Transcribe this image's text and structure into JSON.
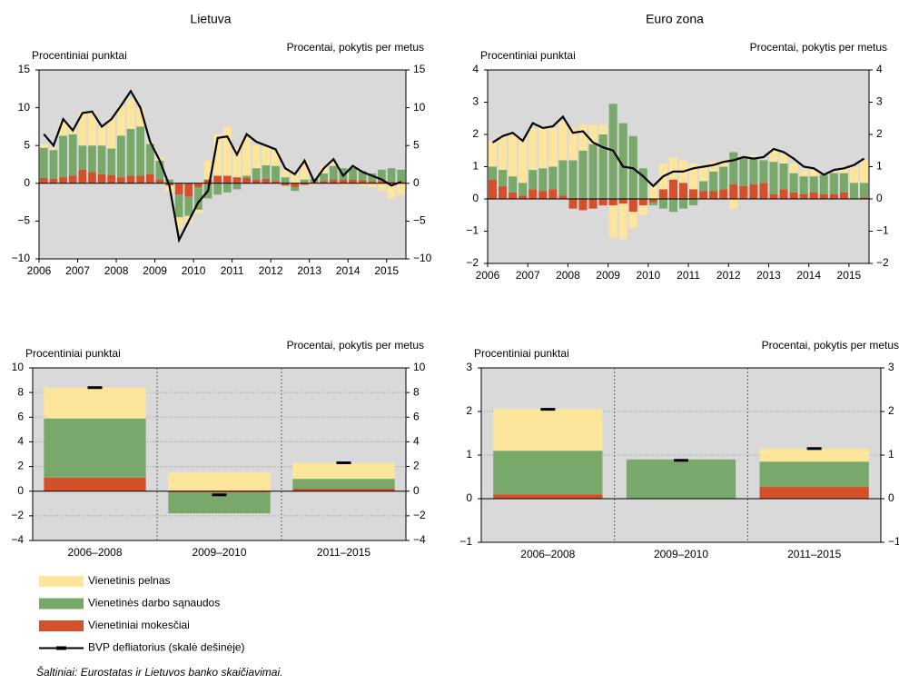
{
  "legend": [
    {
      "name": "Vienetinis pelnas",
      "color": "#fde69c"
    },
    {
      "name": "Vienetinės darbo sąnaudos",
      "color": "#78a86a"
    },
    {
      "name": "Vienetiniai mokesčiai",
      "color": "#d4502a"
    },
    {
      "name": "BVP defliatorius (skalė dešinėje)",
      "color": "#000000"
    }
  ],
  "source": "Šaltiniai: Eurostatas ir Lietuvos banko skaičiavimai.",
  "chart_data": [
    {
      "type": "bar",
      "title": "Lietuva",
      "ylabel": "Procentiniai punktai",
      "y2label": "Procentai, pokytis per metus",
      "categories": [
        "2006",
        null,
        null,
        null,
        "2007",
        null,
        null,
        null,
        "2008",
        null,
        null,
        null,
        "2009",
        null,
        null,
        null,
        "2010",
        null,
        null,
        null,
        "2011",
        null,
        null,
        null,
        "2012",
        null,
        null,
        null,
        "2013",
        null,
        null,
        null,
        "2014",
        null,
        null,
        null,
        "2015",
        null
      ],
      "ylim": [
        -10,
        15
      ],
      "yticks": [
        {
          "value": -10,
          "label": "−10"
        },
        {
          "value": -5,
          "label": "−5"
        },
        0,
        5,
        10,
        15
      ],
      "y2lim": [
        -10,
        15
      ],
      "y2ticks": [
        {
          "value": -10,
          "label": "−10"
        },
        {
          "value": -5,
          "label": "−5"
        },
        0,
        5,
        10,
        15
      ],
      "series": [
        {
          "values": [
            0.5,
            0.3,
            2,
            1,
            4.5,
            4.5,
            2.5,
            4,
            4,
            4,
            2.5,
            0.3,
            0.5,
            -0.8,
            -1.5,
            -1,
            -0.5,
            2.5,
            5.5,
            6.5,
            4,
            5,
            3,
            2.5,
            2,
            1,
            1.5,
            2.5,
            -0.2,
            1,
            0.5,
            -0.2,
            0,
            -0.3,
            -0.5,
            -1,
            -2,
            -1.5
          ]
        },
        {
          "values": [
            4,
            3.8,
            5.5,
            5.5,
            3.2,
            3.5,
            3.8,
            3.5,
            5.5,
            6.2,
            6.5,
            4,
            2.5,
            0.5,
            -3,
            -2.5,
            -3,
            -2,
            -1.5,
            -1.2,
            -0.8,
            0.3,
            1.5,
            1.8,
            2,
            0.8,
            -0.5,
            0.5,
            0.4,
            1,
            1.8,
            1.5,
            1.5,
            1.2,
            1,
            1.5,
            1.8,
            1.6
          ]
        },
        {
          "values": [
            0.7,
            0.6,
            0.8,
            1,
            1.8,
            1.5,
            1.2,
            1.1,
            0.8,
            1,
            1,
            1.2,
            0.5,
            -0.3,
            -1.5,
            -1.8,
            -0.5,
            0.5,
            1,
            1,
            0.8,
            0.7,
            0.5,
            0.6,
            0.3,
            -0.3,
            -0.5,
            -0.2,
            0.2,
            0.3,
            0.5,
            0.5,
            0.5,
            0.4,
            0.3,
            0.3,
            0.2,
            0.2
          ]
        },
        {
          "axis": "y2",
          "type": "line",
          "values": [
            6.5,
            5,
            8.5,
            7,
            9.3,
            9.5,
            7.5,
            8.5,
            10.3,
            12.2,
            10,
            5.5,
            3,
            -0.3,
            -7.5,
            -5,
            -2.5,
            -1,
            6,
            6.2,
            3.8,
            6.5,
            5.5,
            5,
            4.5,
            2,
            1.2,
            3,
            0.2,
            2,
            3.2,
            1,
            2.3,
            1.5,
            1,
            0.5,
            -0.3,
            0.2
          ]
        }
      ]
    },
    {
      "type": "bar",
      "title": "Euro zona",
      "ylabel": "Procentiniai punktai",
      "y2label": "Procentai, pokytis per metus",
      "categories": [
        "2006",
        null,
        null,
        null,
        "2007",
        null,
        null,
        null,
        "2008",
        null,
        null,
        null,
        "2009",
        null,
        null,
        null,
        "2010",
        null,
        null,
        null,
        "2011",
        null,
        null,
        null,
        "2012",
        null,
        null,
        null,
        "2013",
        null,
        null,
        null,
        "2014",
        null,
        null,
        null,
        "2015",
        null
      ],
      "ylim": [
        -2,
        4
      ],
      "yticks": [
        {
          "value": -2,
          "label": "−2"
        },
        {
          "value": -1,
          "label": "−1"
        },
        0,
        1,
        2,
        3,
        4
      ],
      "y2lim": [
        -2,
        4
      ],
      "y2ticks": [
        {
          "value": -2,
          "label": "−2"
        },
        {
          "value": -1,
          "label": "−1"
        },
        0,
        1,
        2,
        3,
        4
      ],
      "series": [
        {
          "values": [
            0.8,
            1.1,
            1.3,
            1.4,
            1.3,
            1.3,
            1.2,
            1.2,
            1,
            0.8,
            0.6,
            0.3,
            -1,
            -1.1,
            -0.5,
            -0.3,
            0.4,
            0.8,
            0.7,
            0.7,
            0.8,
            0.5,
            0.3,
            0.2,
            -0.3,
            0,
            0.1,
            0,
            0.4,
            0.3,
            0.3,
            0.2,
            0.2,
            0.05,
            0.05,
            0.2,
            0.5,
            0.7
          ]
        },
        {
          "values": [
            0.4,
            0.5,
            0.5,
            0.4,
            0.6,
            0.7,
            0.7,
            1.1,
            1.2,
            1.5,
            1.7,
            2,
            2.95,
            2.35,
            1.95,
            0.95,
            -0.1,
            -0.3,
            -0.4,
            -0.3,
            -0.2,
            0.3,
            0.6,
            0.7,
            1,
            0.9,
            0.8,
            0.7,
            1,
            0.8,
            0.6,
            0.55,
            0.5,
            0.6,
            0.65,
            0.6,
            0.5,
            0.45
          ]
        },
        {
          "values": [
            0.6,
            0.4,
            0.2,
            0.1,
            0.3,
            0.25,
            0.3,
            0.1,
            -0.3,
            -0.35,
            -0.3,
            -0.2,
            -0.2,
            -0.15,
            -0.4,
            -0.2,
            -0.1,
            0.3,
            0.6,
            0.5,
            0.3,
            0.25,
            0.25,
            0.3,
            0.45,
            0.4,
            0.45,
            0.5,
            0.15,
            0.3,
            0.2,
            0.15,
            0.2,
            0.15,
            0.15,
            0.2,
            0,
            0.05
          ]
        },
        {
          "axis": "y2",
          "type": "line",
          "values": [
            1.75,
            1.95,
            2.05,
            1.8,
            2.35,
            2.2,
            2.25,
            2.55,
            2.05,
            2.1,
            1.75,
            1.6,
            1.5,
            1,
            0.95,
            0.7,
            0.4,
            0.7,
            0.85,
            0.85,
            0.95,
            1,
            1.05,
            1.15,
            1.2,
            1.3,
            1.25,
            1.3,
            1.55,
            1.45,
            1.25,
            1,
            0.95,
            0.75,
            0.9,
            0.95,
            1.05,
            1.25
          ]
        }
      ]
    },
    {
      "type": "bar",
      "grid": true,
      "ylabel": "Procentiniai punktai",
      "y2label": "Procentai, pokytis per metus",
      "categories": [
        "2006–2008",
        "2009–2010",
        "2011–2015"
      ],
      "ylim": [
        -4,
        10
      ],
      "yticks": [
        {
          "value": -4,
          "label": "−4"
        },
        {
          "value": -2,
          "label": "−2"
        },
        0,
        2,
        4,
        6,
        8,
        10
      ],
      "y2lim": [
        -4,
        10
      ],
      "y2ticks": [
        {
          "value": -4,
          "label": "−4"
        },
        {
          "value": -2,
          "label": "−2"
        },
        0,
        2,
        4,
        6,
        8,
        10
      ],
      "series": [
        {
          "values": [
            2.5,
            1.5,
            1.3
          ]
        },
        {
          "values": [
            4.8,
            -1.7,
            0.8
          ]
        },
        {
          "values": [
            1.1,
            -0.1,
            0.2
          ]
        },
        {
          "axis": "y2",
          "type": "marker",
          "values": [
            8.4,
            -0.3,
            2.3
          ]
        }
      ]
    },
    {
      "type": "bar",
      "grid": true,
      "ylabel": "Procentiniai punktai",
      "y2label": "Procentai, pokytis per metus",
      "categories": [
        "2006–2008",
        "2009–2010",
        "2011–2015"
      ],
      "ylim": [
        -1,
        3
      ],
      "yticks": [
        {
          "value": -1,
          "label": "−1"
        },
        0,
        1,
        2,
        3
      ],
      "y2lim": [
        -1,
        3
      ],
      "y2ticks": [
        {
          "value": -1,
          "label": "−1"
        },
        0,
        1,
        2,
        3
      ],
      "series": [
        {
          "values": [
            0.95,
            0,
            0.3
          ]
        },
        {
          "values": [
            1,
            0.9,
            0.58
          ]
        },
        {
          "values": [
            0.1,
            0,
            0.27
          ]
        },
        {
          "axis": "y2",
          "type": "marker",
          "values": [
            2.05,
            0.88,
            1.15
          ]
        }
      ]
    }
  ]
}
